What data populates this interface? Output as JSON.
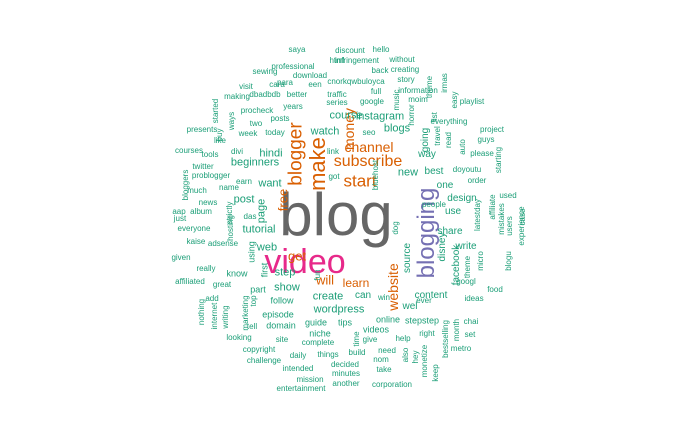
{
  "colors": {
    "teal": "#1b9e77",
    "orange": "#d95f02",
    "purple": "#7570b3",
    "magenta": "#e7298a",
    "gray": "#666666"
  },
  "words": [
    {
      "text": "blog",
      "color": "gray"
    },
    {
      "text": "video",
      "color": "magenta"
    },
    {
      "text": "blogging",
      "color": "purple"
    },
    {
      "text": "make",
      "color": "orange"
    },
    {
      "text": "blogger",
      "color": "orange"
    },
    {
      "text": "subscribe",
      "color": "orange"
    },
    {
      "text": "start",
      "color": "orange"
    },
    {
      "text": "channel",
      "color": "orange"
    },
    {
      "text": "website",
      "color": "orange"
    },
    {
      "text": "money",
      "color": "orange"
    },
    {
      "text": "free",
      "color": "orange"
    },
    {
      "text": "get",
      "color": "orange"
    },
    {
      "text": "will",
      "color": "orange"
    },
    {
      "text": "learn",
      "color": "orange"
    },
    {
      "text": "new",
      "color": "teal"
    },
    {
      "text": "instagram",
      "color": "teal"
    },
    {
      "text": "course",
      "color": "teal"
    },
    {
      "text": "blogs",
      "color": "teal"
    },
    {
      "text": "watch",
      "color": "teal"
    },
    {
      "text": "hindi",
      "color": "teal"
    },
    {
      "text": "beginners",
      "color": "teal"
    },
    {
      "text": "want",
      "color": "teal"
    },
    {
      "text": "page",
      "color": "teal"
    },
    {
      "text": "post",
      "color": "teal"
    },
    {
      "text": "tutorial",
      "color": "teal"
    },
    {
      "text": "web",
      "color": "teal"
    },
    {
      "text": "step",
      "color": "teal"
    },
    {
      "text": "show",
      "color": "teal"
    },
    {
      "text": "create",
      "color": "teal"
    },
    {
      "text": "wordpress",
      "color": "teal"
    },
    {
      "text": "can",
      "color": "teal"
    },
    {
      "text": "source",
      "color": "teal"
    },
    {
      "text": "share",
      "color": "teal"
    },
    {
      "text": "use",
      "color": "teal"
    },
    {
      "text": "disney",
      "color": "teal"
    },
    {
      "text": "design",
      "color": "teal"
    },
    {
      "text": "way",
      "color": "teal"
    },
    {
      "text": "best",
      "color": "teal"
    },
    {
      "text": "going",
      "color": "teal"
    },
    {
      "text": "one",
      "color": "teal"
    },
    {
      "text": "write",
      "color": "teal"
    },
    {
      "text": "facebook",
      "color": "teal"
    },
    {
      "text": "content",
      "color": "teal"
    },
    {
      "text": "wel",
      "color": "teal"
    },
    {
      "text": "tips",
      "color": "teal"
    },
    {
      "text": "guide",
      "color": "teal"
    },
    {
      "text": "online",
      "color": "teal"
    },
    {
      "text": "videos",
      "color": "teal"
    },
    {
      "text": "stepstep",
      "color": "teal"
    },
    {
      "text": "first",
      "color": "teal"
    },
    {
      "text": "using",
      "color": "teal"
    },
    {
      "text": "know",
      "color": "teal"
    },
    {
      "text": "part",
      "color": "teal"
    },
    {
      "text": "follow",
      "color": "teal"
    },
    {
      "text": "episode",
      "color": "teal"
    },
    {
      "text": "domain",
      "color": "teal"
    },
    {
      "text": "niche",
      "color": "teal"
    },
    {
      "text": "posts",
      "color": "teal"
    },
    {
      "text": "series",
      "color": "teal"
    },
    {
      "text": "traffic",
      "color": "teal"
    },
    {
      "text": "google",
      "color": "teal"
    },
    {
      "text": "seo",
      "color": "teal"
    },
    {
      "text": "link",
      "color": "teal"
    },
    {
      "text": "got",
      "color": "teal"
    },
    {
      "text": "earn",
      "color": "teal"
    },
    {
      "text": "hosting",
      "color": "teal"
    },
    {
      "text": "das",
      "color": "teal"
    },
    {
      "text": "name",
      "color": "teal"
    },
    {
      "text": "news",
      "color": "teal"
    },
    {
      "text": "adsense",
      "color": "teal"
    },
    {
      "text": "everyone",
      "color": "teal"
    },
    {
      "text": "kaise",
      "color": "teal"
    },
    {
      "text": "given",
      "color": "teal"
    },
    {
      "text": "really",
      "color": "teal"
    },
    {
      "text": "affiliated",
      "color": "teal"
    },
    {
      "text": "great",
      "color": "teal"
    },
    {
      "text": "add",
      "color": "teal"
    },
    {
      "text": "internet",
      "color": "teal"
    },
    {
      "text": "writing",
      "color": "teal"
    },
    {
      "text": "nothing",
      "color": "teal"
    },
    {
      "text": "marketing",
      "color": "teal"
    },
    {
      "text": "top",
      "color": "teal"
    },
    {
      "text": "tell",
      "color": "teal"
    },
    {
      "text": "site",
      "color": "teal"
    },
    {
      "text": "complete",
      "color": "teal"
    },
    {
      "text": "give",
      "color": "teal"
    },
    {
      "text": "help",
      "color": "teal"
    },
    {
      "text": "right",
      "color": "teal"
    },
    {
      "text": "need",
      "color": "teal"
    },
    {
      "text": "build",
      "color": "teal"
    },
    {
      "text": "nom",
      "color": "teal"
    },
    {
      "text": "take",
      "color": "teal"
    },
    {
      "text": "daily",
      "color": "teal"
    },
    {
      "text": "things",
      "color": "teal"
    },
    {
      "text": "looking",
      "color": "teal"
    },
    {
      "text": "copyright",
      "color": "teal"
    },
    {
      "text": "challenge",
      "color": "teal"
    },
    {
      "text": "intended",
      "color": "teal"
    },
    {
      "text": "decided",
      "color": "teal"
    },
    {
      "text": "minutes",
      "color": "teal"
    },
    {
      "text": "mission",
      "color": "teal"
    },
    {
      "text": "another",
      "color": "teal"
    },
    {
      "text": "corporation",
      "color": "teal"
    },
    {
      "text": "entertainment",
      "color": "teal"
    },
    {
      "text": "time",
      "color": "teal"
    },
    {
      "text": "also",
      "color": "teal"
    },
    {
      "text": "hey",
      "color": "teal"
    },
    {
      "text": "monetize",
      "color": "teal"
    },
    {
      "text": "keep",
      "color": "teal"
    },
    {
      "text": "bestselling",
      "color": "teal"
    },
    {
      "text": "month",
      "color": "teal"
    },
    {
      "text": "ever",
      "color": "teal"
    },
    {
      "text": "ideas",
      "color": "teal"
    },
    {
      "text": "chai",
      "color": "teal"
    },
    {
      "text": "set",
      "color": "teal"
    },
    {
      "text": "metro",
      "color": "teal"
    },
    {
      "text": "food",
      "color": "teal"
    },
    {
      "text": "googl",
      "color": "teal"
    },
    {
      "text": "micro",
      "color": "teal"
    },
    {
      "text": "theme",
      "color": "teal"
    },
    {
      "text": "blogu",
      "color": "teal"
    },
    {
      "text": "latestday",
      "color": "teal"
    },
    {
      "text": "affiliate",
      "color": "teal"
    },
    {
      "text": "mistakes",
      "color": "teal"
    },
    {
      "text": "users",
      "color": "teal"
    },
    {
      "text": "experience",
      "color": "teal"
    },
    {
      "text": "case",
      "color": "teal"
    },
    {
      "text": "used",
      "color": "teal"
    },
    {
      "text": "order",
      "color": "teal"
    },
    {
      "text": "doyoutu",
      "color": "teal"
    },
    {
      "text": "starting",
      "color": "teal"
    },
    {
      "text": "please",
      "color": "teal"
    },
    {
      "text": "guys",
      "color": "teal"
    },
    {
      "text": "project",
      "color": "teal"
    },
    {
      "text": "auto",
      "color": "teal"
    },
    {
      "text": "read",
      "color": "teal"
    },
    {
      "text": "playlist",
      "color": "teal"
    },
    {
      "text": "easy",
      "color": "teal"
    },
    {
      "text": "travel",
      "color": "teal"
    },
    {
      "text": "everything",
      "color": "teal"
    },
    {
      "text": "list",
      "color": "teal"
    },
    {
      "text": "irmas",
      "color": "teal"
    },
    {
      "text": "theme",
      "color": "teal"
    },
    {
      "text": "information",
      "color": "teal"
    },
    {
      "text": "horror",
      "color": "teal"
    },
    {
      "text": "moim",
      "color": "teal"
    },
    {
      "text": "full",
      "color": "teal"
    },
    {
      "text": "music",
      "color": "teal"
    },
    {
      "text": "story",
      "color": "teal"
    },
    {
      "text": "back",
      "color": "teal"
    },
    {
      "text": "without",
      "color": "teal"
    },
    {
      "text": "cnorkqwbuloyca",
      "color": "teal"
    },
    {
      "text": "creating",
      "color": "teal"
    },
    {
      "text": "infringement",
      "color": "teal"
    },
    {
      "text": "html",
      "color": "teal"
    },
    {
      "text": "saya",
      "color": "teal"
    },
    {
      "text": "hello",
      "color": "teal"
    },
    {
      "text": "discount",
      "color": "teal"
    },
    {
      "text": "professional",
      "color": "teal"
    },
    {
      "text": "download",
      "color": "teal"
    },
    {
      "text": "sewing",
      "color": "teal"
    },
    {
      "text": "een",
      "color": "teal"
    },
    {
      "text": "para",
      "color": "teal"
    },
    {
      "text": "cara",
      "color": "teal"
    },
    {
      "text": "visit",
      "color": "teal"
    },
    {
      "text": "better",
      "color": "teal"
    },
    {
      "text": "making",
      "color": "teal"
    },
    {
      "text": "dbadbdb",
      "color": "teal"
    },
    {
      "text": "years",
      "color": "teal"
    },
    {
      "text": "procheck",
      "color": "teal"
    },
    {
      "text": "started",
      "color": "teal"
    },
    {
      "text": "two",
      "color": "teal"
    },
    {
      "text": "ways",
      "color": "teal"
    },
    {
      "text": "buy",
      "color": "teal"
    },
    {
      "text": "presents",
      "color": "teal"
    },
    {
      "text": "week",
      "color": "teal"
    },
    {
      "text": "today",
      "color": "teal"
    },
    {
      "text": "like",
      "color": "teal"
    },
    {
      "text": "courses",
      "color": "teal"
    },
    {
      "text": "tools",
      "color": "teal"
    },
    {
      "text": "divi",
      "color": "teal"
    },
    {
      "text": "twitter",
      "color": "teal"
    },
    {
      "text": "problogger",
      "color": "teal"
    },
    {
      "text": "bloggers",
      "color": "teal"
    },
    {
      "text": "much",
      "color": "teal"
    },
    {
      "text": "aap",
      "color": "teal"
    },
    {
      "text": "album",
      "color": "teal"
    },
    {
      "text": "just",
      "color": "teal"
    },
    {
      "text": "strictly",
      "color": "teal"
    },
    {
      "text": "bluehost",
      "color": "teal"
    },
    {
      "text": "fun",
      "color": "teal"
    },
    {
      "text": "win",
      "color": "teal"
    },
    {
      "text": "people",
      "color": "teal"
    },
    {
      "text": "dog",
      "color": "teal"
    },
    {
      "text": "bit",
      "color": "teal"
    }
  ]
}
